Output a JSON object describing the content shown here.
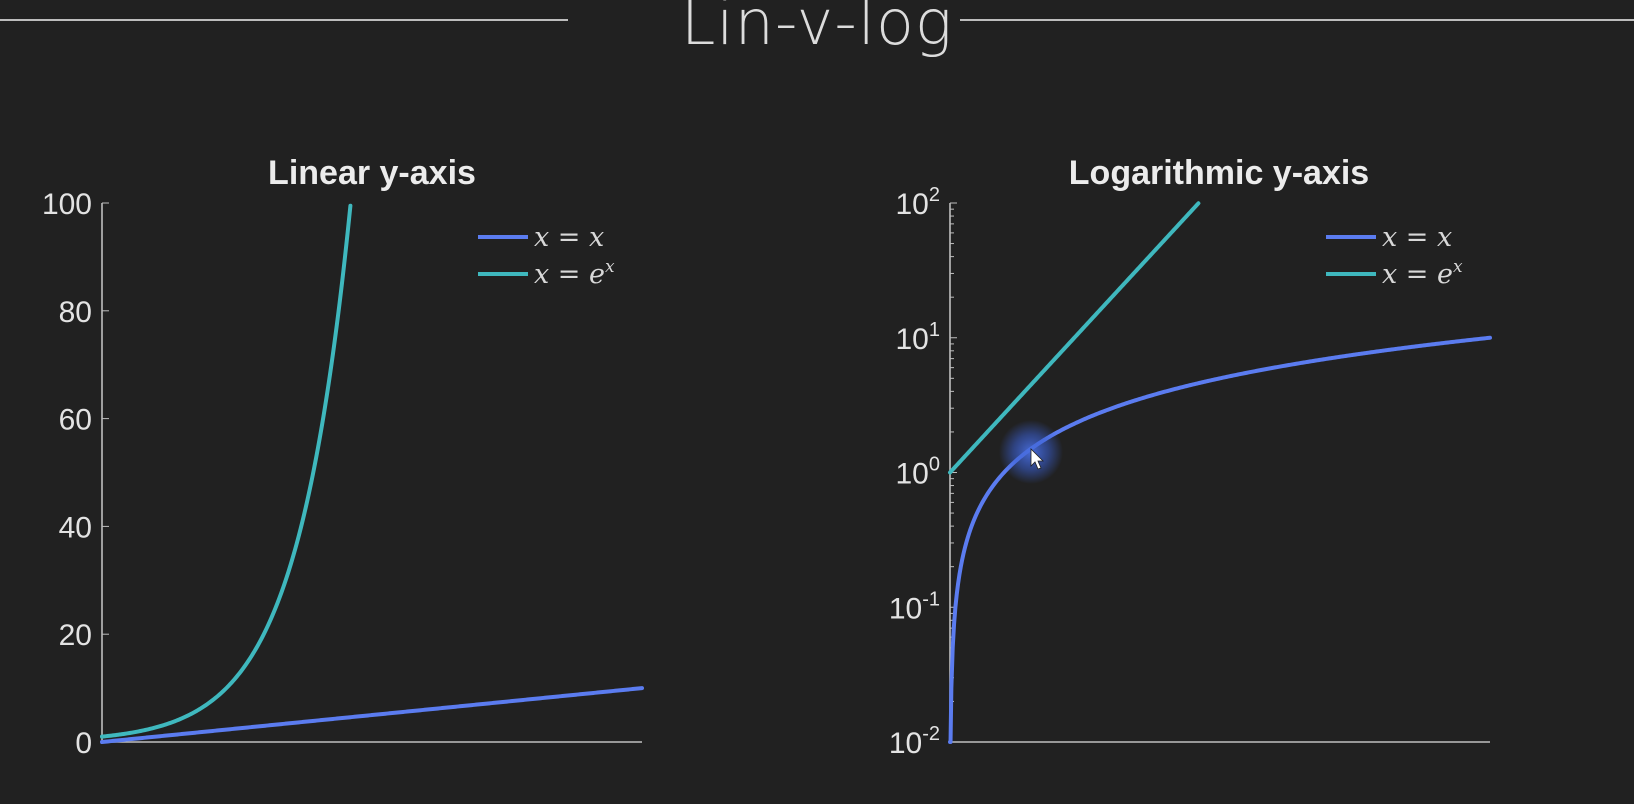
{
  "page": {
    "title": "Lin-v-log"
  },
  "colors": {
    "background": "#212121",
    "axis": "#bfbfbf",
    "series_linear": "#5b7cf0",
    "series_exp": "#3fb8be"
  },
  "cursor": {
    "icon": "mouse-pointer-icon",
    "highlight": "click-highlight"
  },
  "chart_data": [
    {
      "type": "line",
      "title": "Linear y-axis",
      "xlabel": "",
      "ylabel": "",
      "yscale": "linear",
      "xlim": [
        0,
        10
      ],
      "ylim": [
        0,
        100
      ],
      "yticks": [
        0,
        20,
        40,
        60,
        80,
        100
      ],
      "ytick_labels": [
        "0",
        "20",
        "40",
        "60",
        "80",
        "100"
      ],
      "grid": false,
      "legend_position": "top-right",
      "series": [
        {
          "name": "x = x",
          "label_parts": [
            "x = x"
          ],
          "color": "#5b7cf0",
          "function": "x",
          "x": [
            0,
            2,
            4,
            6,
            8,
            10
          ],
          "y": [
            0,
            2,
            4,
            6,
            8,
            10
          ]
        },
        {
          "name": "x = e^x",
          "label_parts": [
            "x = e",
            "x"
          ],
          "color": "#3fb8be",
          "function": "exp",
          "x": [
            0,
            1,
            2,
            3,
            4,
            4.6
          ],
          "y": [
            1,
            2.72,
            7.39,
            20.09,
            54.6,
            99.5
          ]
        }
      ]
    },
    {
      "type": "line",
      "title": "Logarithmic y-axis",
      "xlabel": "",
      "ylabel": "",
      "yscale": "log",
      "xlim": [
        0,
        10
      ],
      "ylim": [
        0.01,
        100
      ],
      "yticks": [
        0.01,
        0.1,
        1,
        10,
        100
      ],
      "ytick_labels": [
        [
          "10",
          "-2"
        ],
        [
          "10",
          "-1"
        ],
        [
          "10",
          "0"
        ],
        [
          "10",
          "1"
        ],
        [
          "10",
          "2"
        ]
      ],
      "grid": false,
      "legend_position": "top-right",
      "series": [
        {
          "name": "x = x",
          "label_parts": [
            "x = x"
          ],
          "color": "#5b7cf0",
          "function": "x",
          "x": [
            0.01,
            0.1,
            1,
            2,
            5,
            10
          ],
          "y": [
            0.01,
            0.1,
            1,
            2,
            5,
            10
          ]
        },
        {
          "name": "x = e^x",
          "label_parts": [
            "x = e",
            "x"
          ],
          "color": "#3fb8be",
          "function": "exp",
          "x": [
            0,
            1,
            2,
            3,
            4,
            4.6
          ],
          "y": [
            1,
            2.72,
            7.39,
            20.09,
            54.6,
            99.5
          ]
        }
      ]
    }
  ]
}
